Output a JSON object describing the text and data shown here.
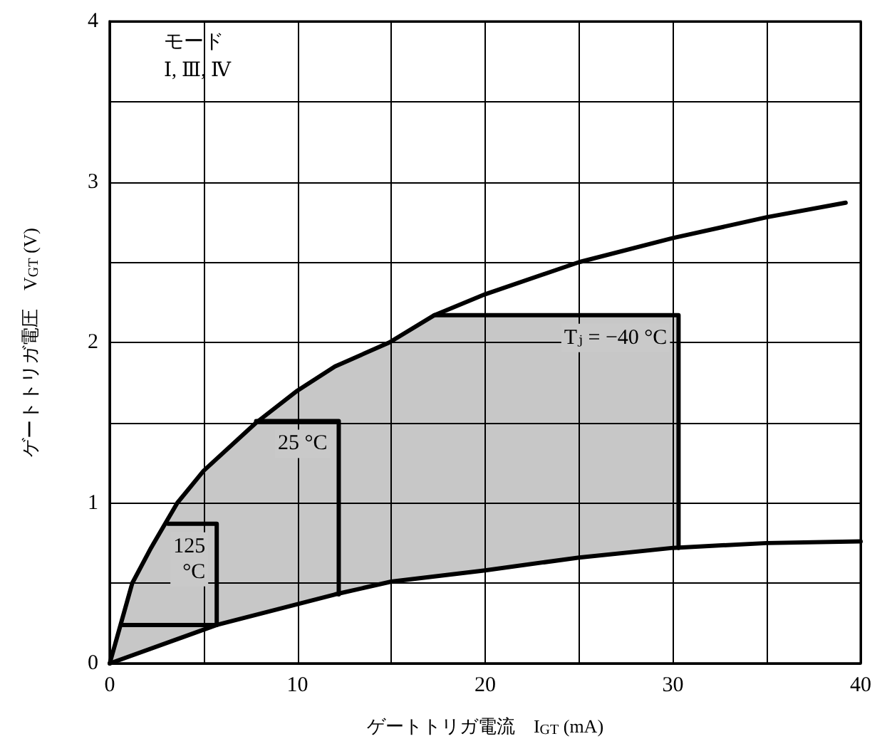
{
  "chart_data": {
    "type": "line",
    "xlabel": "ゲートトリガ電流　I$_{GT}$ (mA)",
    "ylabel": "ゲートトリガ電圧　V$_{GT}$ (V)",
    "xlim": [
      0,
      40
    ],
    "ylim": [
      0,
      4
    ],
    "xticks": [
      0,
      {
        "value": 5,
        "label": null
      },
      10,
      {
        "value": 15,
        "label": null
      },
      20,
      {
        "value": 25,
        "label": null
      },
      30,
      {
        "value": 35,
        "label": null
      },
      40
    ],
    "yticks": [
      0,
      {
        "value": 0.5,
        "label": null
      },
      1,
      {
        "value": 1.5,
        "label": null
      },
      2,
      {
        "value": 2.5,
        "label": null
      },
      3,
      {
        "value": 3.5,
        "label": null
      },
      4
    ],
    "grid": true,
    "marker": "none",
    "line_style": "solid",
    "series": [
      {
        "name": "Tⱼ = −40 °C",
        "color": "#000000",
        "x": [
          0,
          0.6,
          1.2,
          2.2,
          3.6,
          5,
          7.8,
          10,
          12,
          14.9,
          17.3,
          30.3,
          30.3
        ],
        "values": [
          0,
          0.25,
          0.5,
          0.72,
          1.0,
          1.2,
          1.5,
          1.7,
          1.85,
          2.0,
          2.17,
          2.17,
          0.72
        ],
        "lower": [
          0,
          0.03,
          0.05,
          0.09,
          0.15,
          0.21,
          0.3,
          0.37,
          0.43,
          0.51,
          0.55,
          0.72,
          0.72
        ],
        "upper": [
          0,
          0.25,
          0.5,
          0.72,
          1.0,
          1.2,
          1.5,
          1.7,
          1.85,
          2.0,
          2.17,
          2.17,
          0.72
        ]
      },
      {
        "color": "#000000",
        "x": [
          17.3,
          20,
          25,
          30,
          35,
          39.2
        ],
        "values": [
          2.17,
          2.3,
          2.5,
          2.65,
          2.78,
          2.87
        ]
      },
      {
        "color": "#000000",
        "x": [
          0,
          5.7,
          12,
          15,
          20,
          25,
          30,
          35,
          40
        ],
        "values": [
          0,
          0.24,
          0.43,
          0.51,
          0.58,
          0.66,
          0.72,
          0.75,
          0.76
        ]
      },
      {
        "name": "25 °C",
        "color": "#000000",
        "x": [
          7.8,
          12.2,
          12.2
        ],
        "values": [
          1.51,
          1.51,
          0.43
        ]
      },
      {
        "name": "125 °C",
        "color": "#000000",
        "x": [
          3.1,
          5.7,
          5.7,
          0.7
        ],
        "values": [
          0.87,
          0.87,
          0.24,
          0.24
        ]
      }
    ],
    "annotations": [
      "モード",
      "Ⅰ, Ⅲ, Ⅳ"
    ]
  }
}
